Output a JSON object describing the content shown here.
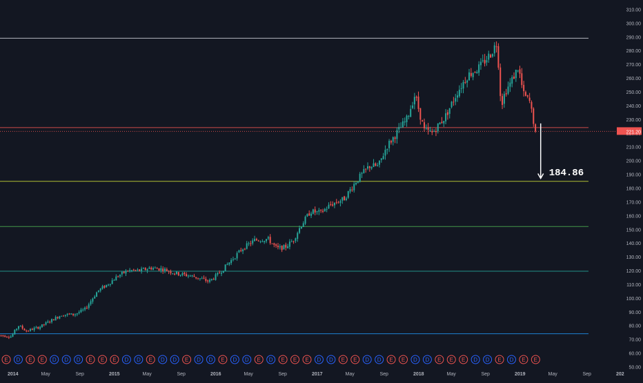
{
  "colors": {
    "background": "#131722",
    "bull": "#26a69a",
    "bear": "#ef5350",
    "axis_text": "#b2b5be",
    "level_colors": [
      "#d1d4dc",
      "#ef5350",
      "#ef5350",
      "#cddc39",
      "#4caf50",
      "#26a69a",
      "#2196f3"
    ],
    "dividend_marker": "#2962ff",
    "earnings_marker": "#ef5350",
    "price_badge_bg": "#ef5350",
    "price_badge_text": "#ffffff",
    "projection_text": "#ffffff"
  },
  "chart_data": {
    "type": "candlestick",
    "title": "",
    "xlabel": "",
    "ylabel": "",
    "ylim": [
      50,
      313
    ],
    "y_ticks": [
      "50.00",
      "60.00",
      "70.00",
      "80.00",
      "90.00",
      "100.00",
      "110.00",
      "120.00",
      "130.00",
      "140.00",
      "150.00",
      "160.00",
      "170.00",
      "180.00",
      "190.00",
      "200.00",
      "210.00",
      "220.00",
      "230.00",
      "240.00",
      "250.00",
      "260.00",
      "270.00",
      "280.00",
      "290.00",
      "300.00",
      "310.00"
    ],
    "x_ticks": [
      {
        "label": "2014",
        "t": 2014.0
      },
      {
        "label": "May",
        "t": 2014.33
      },
      {
        "label": "Sep",
        "t": 2014.67
      },
      {
        "label": "2015",
        "t": 2015.0
      },
      {
        "label": "May",
        "t": 2015.33
      },
      {
        "label": "Sep",
        "t": 2015.67
      },
      {
        "label": "2016",
        "t": 2016.0
      },
      {
        "label": "May",
        "t": 2016.33
      },
      {
        "label": "Sep",
        "t": 2016.67
      },
      {
        "label": "2017",
        "t": 2017.0
      },
      {
        "label": "May",
        "t": 2017.33
      },
      {
        "label": "Sep",
        "t": 2017.67
      },
      {
        "label": "2018",
        "t": 2018.0
      },
      {
        "label": "May",
        "t": 2018.33
      },
      {
        "label": "Sep",
        "t": 2018.67
      },
      {
        "label": "2019",
        "t": 2019.0
      },
      {
        "label": "May",
        "t": 2019.33
      },
      {
        "label": "Sep",
        "t": 2019.67
      },
      {
        "label": "202",
        "t": 2020.0
      }
    ],
    "price_path": [
      [
        2013.93,
        73
      ],
      [
        2014.05,
        72
      ],
      [
        2014.12,
        80
      ],
      [
        2014.2,
        76
      ],
      [
        2014.33,
        79
      ],
      [
        2014.45,
        84
      ],
      [
        2014.55,
        88
      ],
      [
        2014.67,
        88
      ],
      [
        2014.78,
        92
      ],
      [
        2014.9,
        105
      ],
      [
        2015.0,
        110
      ],
      [
        2015.1,
        116
      ],
      [
        2015.2,
        120
      ],
      [
        2015.33,
        120
      ],
      [
        2015.42,
        122
      ],
      [
        2015.55,
        121
      ],
      [
        2015.67,
        118
      ],
      [
        2015.75,
        117
      ],
      [
        2015.83,
        116
      ],
      [
        2015.92,
        114
      ],
      [
        2016.0,
        112
      ],
      [
        2016.1,
        118
      ],
      [
        2016.2,
        126
      ],
      [
        2016.33,
        136
      ],
      [
        2016.45,
        142
      ],
      [
        2016.58,
        143
      ],
      [
        2016.67,
        136
      ],
      [
        2016.75,
        137
      ],
      [
        2016.83,
        142
      ],
      [
        2016.9,
        152
      ],
      [
        2017.0,
        163
      ],
      [
        2017.1,
        162
      ],
      [
        2017.2,
        168
      ],
      [
        2017.33,
        172
      ],
      [
        2017.45,
        185
      ],
      [
        2017.58,
        196
      ],
      [
        2017.67,
        196
      ],
      [
        2017.75,
        210
      ],
      [
        2017.85,
        220
      ],
      [
        2017.95,
        230
      ],
      [
        2018.03,
        248
      ],
      [
        2018.12,
        222
      ],
      [
        2018.2,
        220
      ],
      [
        2018.33,
        232
      ],
      [
        2018.45,
        250
      ],
      [
        2018.55,
        262
      ],
      [
        2018.67,
        268
      ],
      [
        2018.78,
        278
      ],
      [
        2018.84,
        286
      ],
      [
        2018.88,
        240
      ],
      [
        2018.92,
        250
      ],
      [
        2018.97,
        256
      ],
      [
        2019.05,
        268
      ],
      [
        2019.1,
        248
      ],
      [
        2019.16,
        243
      ],
      [
        2019.22,
        221.2
      ]
    ],
    "current_price_label": "221.20",
    "current_price": 221.2,
    "levels": [
      289,
      224,
      221.2,
      184.86,
      152,
      119.5,
      74
    ],
    "projection": {
      "label": "184.86",
      "from_value": 227,
      "to_value": 187,
      "t": 2019.27
    }
  },
  "events": {
    "t_start": 2014.0,
    "t_end": 2019.22,
    "markers": [
      "E",
      "D",
      "E",
      "E",
      "D",
      "D",
      "D",
      "E",
      "E",
      "E",
      "D",
      "D",
      "E",
      "D",
      "D",
      "E",
      "D",
      "D",
      "E",
      "D",
      "D",
      "E",
      "D",
      "E",
      "E",
      "E",
      "D",
      "D",
      "E",
      "E",
      "D",
      "D",
      "E",
      "E",
      "D",
      "D",
      "E",
      "E",
      "E",
      "D",
      "D",
      "E",
      "D",
      "E",
      "E"
    ]
  }
}
